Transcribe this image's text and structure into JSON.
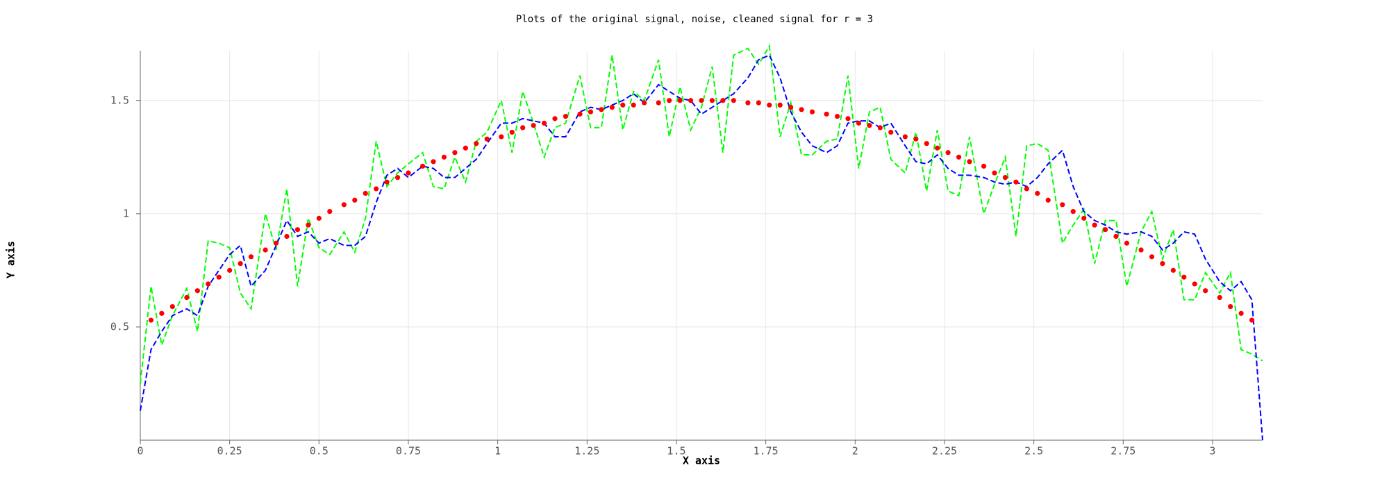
{
  "chart_data": {
    "type": "line",
    "title": "Plots of the original signal, noise, cleaned signal for r = 3",
    "x_label": "X axis",
    "y_label": "Y axis",
    "xlim": [
      0,
      3.14
    ],
    "ylim": [
      0,
      1.72
    ],
    "xticks": [
      0,
      0.25,
      0.5,
      0.75,
      1,
      1.25,
      1.5,
      1.75,
      2,
      2.25,
      2.5,
      2.75,
      3
    ],
    "yticks": [
      0.5,
      1,
      1.5
    ],
    "grid": true,
    "x": [
      0,
      0.03,
      0.06,
      0.09,
      0.13,
      0.16,
      0.19,
      0.22,
      0.25,
      0.28,
      0.31,
      0.35,
      0.38,
      0.41,
      0.44,
      0.47,
      0.5,
      0.53,
      0.57,
      0.6,
      0.63,
      0.66,
      0.69,
      0.72,
      0.75,
      0.79,
      0.82,
      0.85,
      0.88,
      0.91,
      0.94,
      0.97,
      1.01,
      1.04,
      1.07,
      1.1,
      1.13,
      1.16,
      1.19,
      1.23,
      1.26,
      1.29,
      1.32,
      1.35,
      1.38,
      1.41,
      1.45,
      1.48,
      1.51,
      1.54,
      1.57,
      1.6,
      1.63,
      1.66,
      1.7,
      1.73,
      1.76,
      1.79,
      1.82,
      1.85,
      1.88,
      1.92,
      1.95,
      1.98,
      2.01,
      2.04,
      2.07,
      2.1,
      2.14,
      2.17,
      2.2,
      2.23,
      2.26,
      2.29,
      2.32,
      2.36,
      2.39,
      2.42,
      2.45,
      2.48,
      2.51,
      2.54,
      2.58,
      2.61,
      2.64,
      2.67,
      2.7,
      2.73,
      2.76,
      2.8,
      2.83,
      2.86,
      2.89,
      2.92,
      2.95,
      2.98,
      3.02,
      3.05,
      3.08,
      3.11,
      3.14
    ],
    "series": [
      {
        "color": "#00ff00",
        "style": "dashed",
        "values": [
          0.25,
          0.68,
          0.42,
          0.55,
          0.67,
          0.48,
          0.88,
          0.87,
          0.85,
          0.65,
          0.58,
          1.0,
          0.84,
          1.11,
          0.68,
          0.98,
          0.85,
          0.82,
          0.92,
          0.83,
          0.98,
          1.32,
          1.12,
          1.18,
          1.22,
          1.27,
          1.12,
          1.11,
          1.25,
          1.14,
          1.32,
          1.36,
          1.5,
          1.27,
          1.54,
          1.4,
          1.25,
          1.38,
          1.4,
          1.61,
          1.38,
          1.38,
          1.7,
          1.37,
          1.54,
          1.5,
          1.68,
          1.34,
          1.56,
          1.37,
          1.47,
          1.65,
          1.27,
          1.7,
          1.73,
          1.66,
          1.74,
          1.34,
          1.49,
          1.26,
          1.26,
          1.32,
          1.33,
          1.61,
          1.2,
          1.45,
          1.47,
          1.24,
          1.18,
          1.36,
          1.1,
          1.37,
          1.1,
          1.08,
          1.34,
          1.0,
          1.13,
          1.25,
          0.9,
          1.3,
          1.31,
          1.28,
          0.87,
          0.95,
          1.02,
          0.78,
          0.97,
          0.97,
          0.68,
          0.92,
          1.01,
          0.8,
          0.93,
          0.62,
          0.62,
          0.74,
          0.65,
          0.74,
          0.4,
          0.38,
          0.35
        ]
      },
      {
        "color": "#0000ff",
        "style": "dashed",
        "values": [
          0.13,
          0.4,
          0.48,
          0.55,
          0.58,
          0.55,
          0.68,
          0.75,
          0.82,
          0.86,
          0.68,
          0.75,
          0.86,
          0.97,
          0.9,
          0.92,
          0.87,
          0.89,
          0.86,
          0.86,
          0.9,
          1.05,
          1.17,
          1.2,
          1.16,
          1.21,
          1.2,
          1.16,
          1.16,
          1.2,
          1.24,
          1.31,
          1.4,
          1.4,
          1.42,
          1.41,
          1.4,
          1.34,
          1.34,
          1.45,
          1.47,
          1.46,
          1.48,
          1.5,
          1.53,
          1.49,
          1.57,
          1.54,
          1.51,
          1.5,
          1.44,
          1.47,
          1.5,
          1.53,
          1.6,
          1.68,
          1.7,
          1.6,
          1.45,
          1.36,
          1.3,
          1.27,
          1.3,
          1.4,
          1.41,
          1.41,
          1.38,
          1.4,
          1.3,
          1.23,
          1.22,
          1.26,
          1.2,
          1.17,
          1.17,
          1.16,
          1.14,
          1.13,
          1.14,
          1.12,
          1.16,
          1.22,
          1.28,
          1.12,
          1.01,
          0.97,
          0.95,
          0.92,
          0.91,
          0.92,
          0.9,
          0.84,
          0.87,
          0.92,
          0.91,
          0.8,
          0.7,
          0.66,
          0.7,
          0.62,
          0.0
        ]
      },
      {
        "color": "#ff0000",
        "style": "dots",
        "values": [
          null,
          0.53,
          0.56,
          0.59,
          0.63,
          0.66,
          0.69,
          0.72,
          0.75,
          0.78,
          0.81,
          0.84,
          0.87,
          0.9,
          0.93,
          0.95,
          0.98,
          1.01,
          1.04,
          1.06,
          1.09,
          1.11,
          1.14,
          1.16,
          1.18,
          1.21,
          1.23,
          1.25,
          1.27,
          1.29,
          1.31,
          1.33,
          1.34,
          1.36,
          1.38,
          1.39,
          1.4,
          1.42,
          1.43,
          1.44,
          1.45,
          1.46,
          1.47,
          1.48,
          1.48,
          1.49,
          1.49,
          1.5,
          1.5,
          1.5,
          1.5,
          1.5,
          1.5,
          1.5,
          1.49,
          1.49,
          1.48,
          1.48,
          1.47,
          1.46,
          1.45,
          1.44,
          1.43,
          1.42,
          1.4,
          1.39,
          1.38,
          1.36,
          1.34,
          1.33,
          1.31,
          1.29,
          1.27,
          1.25,
          1.23,
          1.21,
          1.18,
          1.16,
          1.14,
          1.11,
          1.09,
          1.06,
          1.04,
          1.01,
          0.98,
          0.95,
          0.93,
          0.9,
          0.87,
          0.84,
          0.81,
          0.78,
          0.75,
          0.72,
          0.69,
          0.66,
          0.63,
          0.59,
          0.56,
          0.53,
          null
        ]
      }
    ]
  }
}
